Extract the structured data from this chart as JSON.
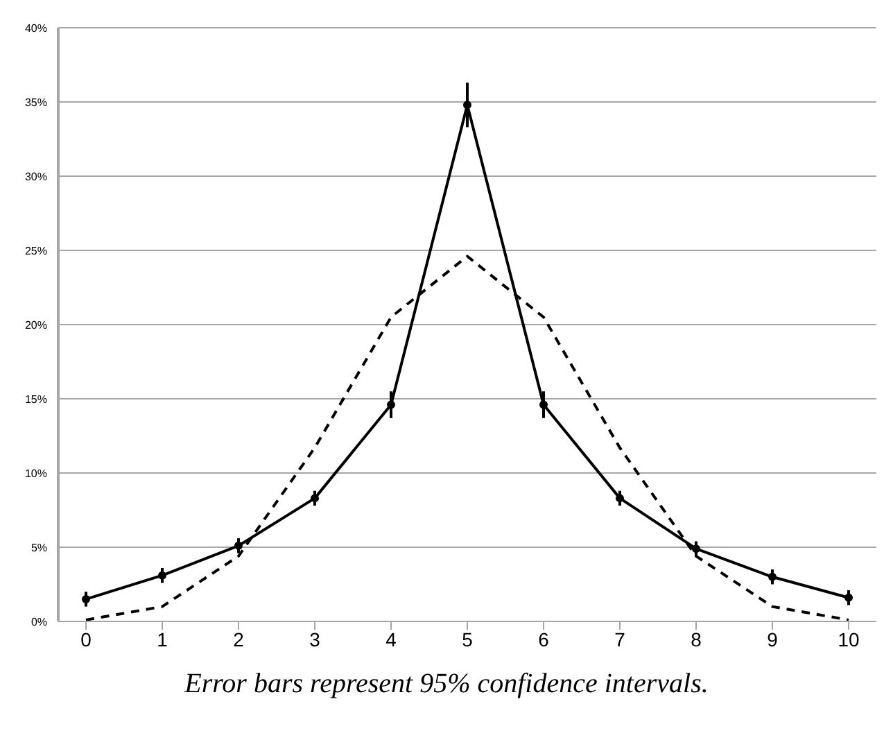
{
  "chart_data": {
    "type": "line",
    "categories": [
      "0",
      "1",
      "2",
      "3",
      "4",
      "5",
      "6",
      "7",
      "8",
      "9",
      "10"
    ],
    "series": [
      {
        "color": "#000000",
        "line_style": "solid",
        "marker": "circle",
        "values": [
          1.5,
          3.1,
          5.1,
          8.3,
          14.6,
          34.8,
          14.6,
          8.3,
          4.9,
          3.0,
          1.6
        ],
        "errors": [
          0.5,
          0.5,
          0.5,
          0.5,
          0.9,
          1.5,
          0.9,
          0.5,
          0.5,
          0.5,
          0.5
        ]
      },
      {
        "color": "#000000",
        "line_style": "dashed",
        "marker": "none",
        "values": [
          0.1,
          1.0,
          4.4,
          11.7,
          20.5,
          24.6,
          20.5,
          11.7,
          4.4,
          1.0,
          0.1
        ]
      }
    ],
    "ylim": [
      0,
      40
    ],
    "yticks": [
      {
        "value": 0,
        "label": "0%"
      },
      {
        "value": 5,
        "label": "5%"
      },
      {
        "value": 10,
        "label": "10%"
      },
      {
        "value": 15,
        "label": "15%"
      },
      {
        "value": 20,
        "label": "20%"
      },
      {
        "value": 25,
        "label": "25%"
      },
      {
        "value": 30,
        "label": "30%"
      },
      {
        "value": 35,
        "label": "35%"
      },
      {
        "value": 40,
        "label": "40%"
      }
    ],
    "grid": "y",
    "annotations": [
      "Error bars represent 95% confidence intervals."
    ]
  }
}
